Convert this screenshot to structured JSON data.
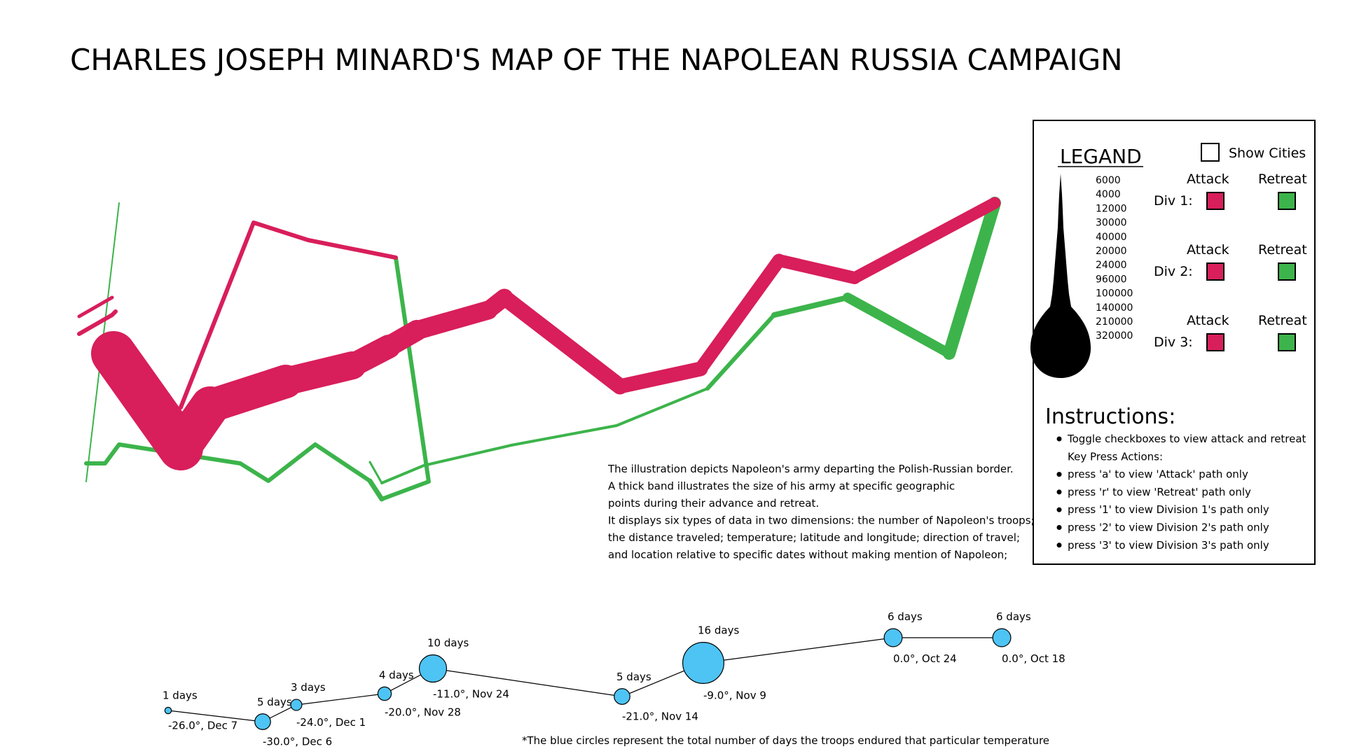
{
  "title": "CHARLES JOSEPH MINARD'S MAP OF THE NAPOLEAN RUSSIA CAMPAIGN",
  "colors": {
    "attack": "#d81e5b",
    "retreat": "#3cb44b",
    "circle_fill": "#4dc4f4",
    "circle_stroke": "#000000"
  },
  "legend": {
    "title": "LEGAND",
    "show_cities_label": "Show Cities",
    "show_cities_checked": false,
    "size_scale": [
      "6000",
      "4000",
      "12000",
      "30000",
      "40000",
      "20000",
      "24000",
      "96000",
      "100000",
      "140000",
      "210000",
      "320000"
    ],
    "divisions": [
      {
        "label": "Div 1:",
        "attack_label": "Attack",
        "retreat_label": "Retreat"
      },
      {
        "label": "Div 2:",
        "attack_label": "Attack",
        "retreat_label": "Retreat"
      },
      {
        "label": "Div 3:",
        "attack_label": "Attack",
        "retreat_label": "Retreat"
      }
    ]
  },
  "instructions": {
    "title": "Instructions:",
    "items": [
      {
        "text": "Toggle checkboxes to view attack and retreat",
        "bullet": true
      },
      {
        "text": "Key Press Actions:",
        "bullet": false
      },
      {
        "text": "press 'a' to view 'Attack' path only",
        "bullet": true
      },
      {
        "text": "press 'r' to view 'Retreat' path only",
        "bullet": true
      },
      {
        "text": "press '1' to view Division 1's path only",
        "bullet": true
      },
      {
        "text": "press '2' to view Division 2's path only",
        "bullet": true
      },
      {
        "text": "press '3' to view Division 3's path only",
        "bullet": true
      }
    ]
  },
  "description": [
    "The illustration depicts Napoleon's army departing the Polish-Russian border.",
    "A thick band illustrates the size of his army at specific geographic",
    "points during their advance and retreat.",
    "It displays six types of data in two dimensions: the number of Napoleon's troops;",
    "the distance traveled; temperature; latitude and longitude; direction of travel;",
    "and location relative to specific dates without making mention of Napoleon;"
  ],
  "temperatures": [
    {
      "temp": "-26.0°, Dec 7",
      "days": "1 days",
      "value": -26.0,
      "days_value": 1
    },
    {
      "temp": "-30.0°, Dec 6",
      "days": "5 days",
      "value": -30.0,
      "days_value": 5
    },
    {
      "temp": "-24.0°, Dec 1",
      "days": "3 days",
      "value": -24.0,
      "days_value": 3
    },
    {
      "temp": "-20.0°, Nov 28",
      "days": "4 days",
      "value": -20.0,
      "days_value": 4
    },
    {
      "temp": "-11.0°, Nov 24",
      "days": "10 days",
      "value": -11.0,
      "days_value": 10
    },
    {
      "temp": "-21.0°, Nov 14",
      "days": "5 days",
      "value": -21.0,
      "days_value": 5
    },
    {
      "temp": "-9.0°, Nov 9",
      "days": "16 days",
      "value": -9.0,
      "days_value": 16
    },
    {
      "temp": "0.0°, Oct 24",
      "days": "6 days",
      "value": 0.0,
      "days_value": 6
    },
    {
      "temp": "0.0°, Oct 18",
      "days": "6 days",
      "value": 0.0,
      "days_value": 6
    }
  ],
  "footnote": "*The blue circles represent the total number of days the troops endured that particular temperature",
  "paths": {
    "attack_div1": [
      [
        0,
        0,
        340000
      ],
      [
        1,
        1,
        300000
      ],
      [
        2,
        2,
        280000
      ],
      [
        3,
        3,
        240000
      ],
      [
        4,
        4,
        210000
      ],
      [
        5,
        5,
        180000
      ],
      [
        6,
        6,
        175000
      ],
      [
        7,
        7,
        145000
      ],
      [
        8,
        8,
        140000
      ],
      [
        9,
        9,
        127100
      ],
      [
        10,
        10,
        100000
      ],
      [
        11,
        11,
        100000
      ],
      [
        12,
        12,
        98000
      ],
      [
        13,
        13,
        100000
      ]
    ],
    "retreat_div1": [
      [
        0,
        0,
        100000
      ],
      [
        1,
        1,
        98000
      ],
      [
        2,
        2,
        97000
      ],
      [
        3,
        3,
        96000
      ],
      [
        4,
        4,
        87000
      ],
      [
        5,
        5,
        55000
      ],
      [
        6,
        6,
        37000
      ],
      [
        7,
        7,
        24000
      ],
      [
        8,
        8,
        20000
      ],
      [
        9,
        9,
        20000
      ],
      [
        10,
        10,
        14000
      ],
      [
        11,
        11,
        8000
      ],
      [
        12,
        12,
        4000
      ],
      [
        13,
        13,
        4000
      ]
    ],
    "attack_div2": [
      [
        0,
        0,
        60000
      ],
      [
        1,
        1,
        40000
      ],
      [
        2,
        2,
        33000
      ],
      [
        3,
        3,
        33000
      ],
      [
        4,
        4,
        33000
      ],
      [
        5,
        5,
        30000
      ]
    ],
    "retreat_div2": [
      [
        0,
        0,
        30000
      ],
      [
        1,
        1,
        28000
      ],
      [
        2,
        2,
        28000
      ]
    ],
    "attack_div3": [
      [
        0,
        0,
        22000
      ],
      [
        1,
        1,
        6000
      ]
    ],
    "retreat_div3": [
      [
        0,
        0,
        6000
      ],
      [
        1,
        1,
        6000
      ]
    ]
  }
}
